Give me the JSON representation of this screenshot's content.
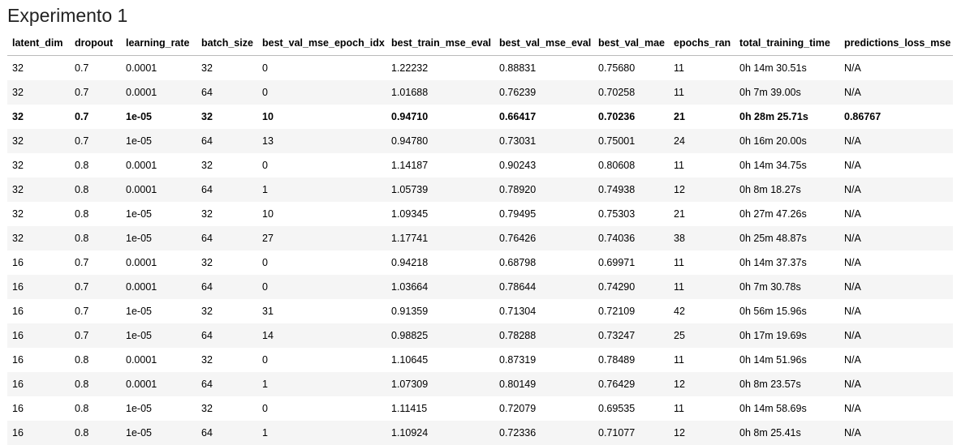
{
  "title": "Experimento 1",
  "table": {
    "columns": [
      "latent_dim",
      "dropout",
      "learning_rate",
      "batch_size",
      "best_val_mse_epoch_idx",
      "best_train_mse_eval",
      "best_val_mse_eval",
      "best_val_mae",
      "epochs_ran",
      "total_training_time",
      "predictions_loss_mse"
    ],
    "rows": [
      [
        "32",
        "0.7",
        "0.0001",
        "32",
        "0",
        "1.22232",
        "0.88831",
        "0.75680",
        "11",
        "0h 14m 30.51s",
        "N/A"
      ],
      [
        "32",
        "0.7",
        "0.0001",
        "64",
        "0",
        "1.01688",
        "0.76239",
        "0.70258",
        "11",
        "0h 7m 39.00s",
        "N/A"
      ],
      [
        "32",
        "0.7",
        "1e-05",
        "32",
        "10",
        "0.94710",
        "0.66417",
        "0.70236",
        "21",
        "0h 28m 25.71s",
        "0.86767"
      ],
      [
        "32",
        "0.7",
        "1e-05",
        "64",
        "13",
        "0.94780",
        "0.73031",
        "0.75001",
        "24",
        "0h 16m 20.00s",
        "N/A"
      ],
      [
        "32",
        "0.8",
        "0.0001",
        "32",
        "0",
        "1.14187",
        "0.90243",
        "0.80608",
        "11",
        "0h 14m 34.75s",
        "N/A"
      ],
      [
        "32",
        "0.8",
        "0.0001",
        "64",
        "1",
        "1.05739",
        "0.78920",
        "0.74938",
        "12",
        "0h 8m 18.27s",
        "N/A"
      ],
      [
        "32",
        "0.8",
        "1e-05",
        "32",
        "10",
        "1.09345",
        "0.79495",
        "0.75303",
        "21",
        "0h 27m 47.26s",
        "N/A"
      ],
      [
        "32",
        "0.8",
        "1e-05",
        "64",
        "27",
        "1.17741",
        "0.76426",
        "0.74036",
        "38",
        "0h 25m 48.87s",
        "N/A"
      ],
      [
        "16",
        "0.7",
        "0.0001",
        "32",
        "0",
        "0.94218",
        "0.68798",
        "0.69971",
        "11",
        "0h 14m 37.37s",
        "N/A"
      ],
      [
        "16",
        "0.7",
        "0.0001",
        "64",
        "0",
        "1.03664",
        "0.78644",
        "0.74290",
        "11",
        "0h 7m 30.78s",
        "N/A"
      ],
      [
        "16",
        "0.7",
        "1e-05",
        "32",
        "31",
        "0.91359",
        "0.71304",
        "0.72109",
        "42",
        "0h 56m 15.96s",
        "N/A"
      ],
      [
        "16",
        "0.7",
        "1e-05",
        "64",
        "14",
        "0.98825",
        "0.78288",
        "0.73247",
        "25",
        "0h 17m 19.69s",
        "N/A"
      ],
      [
        "16",
        "0.8",
        "0.0001",
        "32",
        "0",
        "1.10645",
        "0.87319",
        "0.78489",
        "11",
        "0h 14m 51.96s",
        "N/A"
      ],
      [
        "16",
        "0.8",
        "0.0001",
        "64",
        "1",
        "1.07309",
        "0.80149",
        "0.76429",
        "12",
        "0h 8m 23.57s",
        "N/A"
      ],
      [
        "16",
        "0.8",
        "1e-05",
        "32",
        "0",
        "1.11415",
        "0.72079",
        "0.69535",
        "11",
        "0h 14m 58.69s",
        "N/A"
      ],
      [
        "16",
        "0.8",
        "1e-05",
        "64",
        "1",
        "1.10924",
        "0.72336",
        "0.71077",
        "12",
        "0h 8m 25.41s",
        "N/A"
      ]
    ]
  }
}
